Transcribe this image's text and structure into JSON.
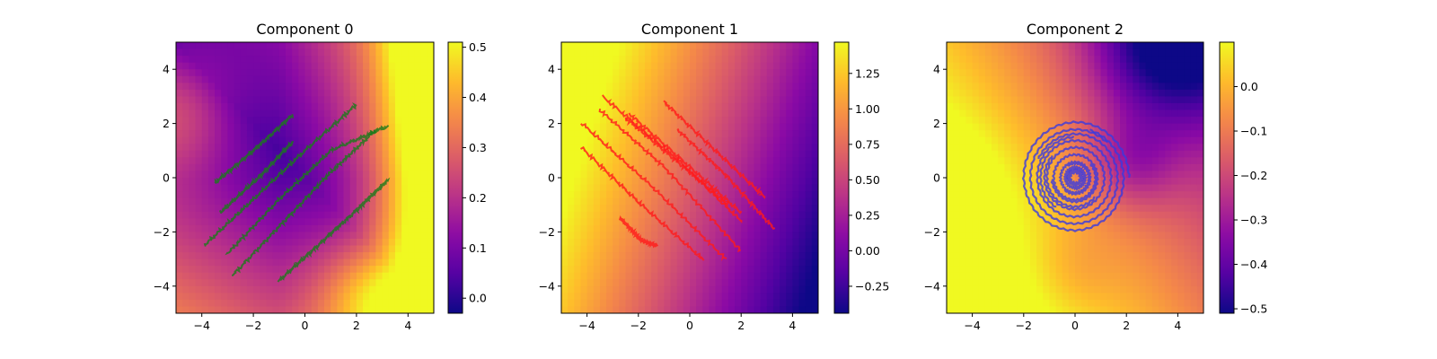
{
  "chart_data": [
    {
      "type": "heatmap",
      "title": "Component 0",
      "xlim": [
        -5,
        5
      ],
      "ylim": [
        -5,
        5
      ],
      "xticks": [
        -4,
        -2,
        0,
        2,
        4
      ],
      "yticks": [
        -4,
        -2,
        0,
        2,
        4
      ],
      "xticklabels": [
        "−4",
        "−2",
        "0",
        "2",
        "4"
      ],
      "yticklabels": [
        "−4",
        "−2",
        "0",
        "2",
        "4"
      ],
      "colormap": "plasma",
      "colorbar": {
        "range": [
          -0.03,
          0.51
        ],
        "ticks": [
          0.0,
          0.1,
          0.2,
          0.3,
          0.4,
          0.5
        ],
        "ticklabels": [
          "0.0",
          "0.1",
          "0.2",
          "0.3",
          "0.4",
          "0.5"
        ]
      },
      "field": "diagonal_band_low_along_x_eq_minus_y_high_right",
      "overlay": {
        "color": "#1a7a1a",
        "kind": "trajectories",
        "lines": [
          [
            [
              -3.5,
              -0.2
            ],
            [
              -2.0,
              1.0
            ],
            [
              -0.5,
              2.3
            ]
          ],
          [
            [
              -3.3,
              -1.3
            ],
            [
              -1.8,
              0.0
            ],
            [
              -0.5,
              1.3
            ]
          ],
          [
            [
              -3.9,
              -2.5
            ],
            [
              -2.0,
              -0.8
            ],
            [
              0.0,
              1.0
            ],
            [
              2.0,
              2.7
            ]
          ],
          [
            [
              -3.0,
              -2.8
            ],
            [
              -1.0,
              -0.8
            ],
            [
              1.0,
              1.0
            ],
            [
              3.2,
              1.9
            ]
          ],
          [
            [
              -2.8,
              -3.6
            ],
            [
              -0.8,
              -1.6
            ],
            [
              1.0,
              0.2
            ],
            [
              2.8,
              1.8
            ]
          ],
          [
            [
              -1.0,
              -3.8
            ],
            [
              0.5,
              -2.5
            ],
            [
              2.0,
              -1.2
            ],
            [
              3.2,
              -0.1
            ]
          ]
        ]
      }
    },
    {
      "type": "heatmap",
      "title": "Component 1",
      "xlim": [
        -5,
        5
      ],
      "ylim": [
        -5,
        5
      ],
      "xticks": [
        -4,
        -2,
        0,
        2,
        4
      ],
      "yticks": [
        -4,
        -2,
        0,
        2,
        4
      ],
      "xticklabels": [
        "−4",
        "−2",
        "0",
        "2",
        "4"
      ],
      "yticklabels": [
        "−4",
        "−2",
        "0",
        "2",
        "4"
      ],
      "colormap": "plasma",
      "colorbar": {
        "range": [
          -0.44,
          1.47
        ],
        "ticks": [
          -0.25,
          0.0,
          0.25,
          0.5,
          0.75,
          1.0,
          1.25
        ],
        "ticklabels": [
          "−0.25",
          "0.00",
          "0.25",
          "0.50",
          "0.75",
          "1.00",
          "1.25"
        ]
      },
      "field": "gradient_high_top_left_low_right",
      "overlay": {
        "color": "#ff1a1a",
        "kind": "trajectories",
        "lines": [
          [
            [
              -3.4,
              3.0
            ],
            [
              -0.5,
              0.7
            ],
            [
              2.0,
              -1.6
            ]
          ],
          [
            [
              -2.4,
              2.4
            ],
            [
              0.0,
              0.4
            ],
            [
              2.0,
              -1.3
            ]
          ],
          [
            [
              -2.5,
              2.2
            ],
            [
              -0.5,
              0.6
            ],
            [
              1.5,
              -1.0
            ]
          ],
          [
            [
              -3.5,
              2.5
            ],
            [
              -1.0,
              0.4
            ],
            [
              2.0,
              -2.7
            ]
          ],
          [
            [
              -4.2,
              2.0
            ],
            [
              -1.5,
              -0.3
            ],
            [
              1.4,
              -3.0
            ]
          ],
          [
            [
              -4.2,
              1.1
            ],
            [
              -2.0,
              -0.9
            ],
            [
              0.5,
              -3.0
            ]
          ],
          [
            [
              -1.0,
              2.8
            ],
            [
              1.0,
              1.0
            ],
            [
              2.9,
              -0.7
            ]
          ],
          [
            [
              -0.5,
              1.8
            ],
            [
              1.5,
              0.0
            ],
            [
              3.3,
              -1.9
            ]
          ],
          [
            [
              -2.7,
              -1.5
            ],
            [
              -1.9,
              -2.3
            ],
            [
              -1.3,
              -2.5
            ]
          ]
        ]
      }
    },
    {
      "type": "heatmap",
      "title": "Component 2",
      "xlim": [
        -5,
        5
      ],
      "ylim": [
        -5,
        5
      ],
      "xticks": [
        -4,
        -2,
        0,
        2,
        4
      ],
      "yticks": [
        -4,
        -2,
        0,
        2,
        4
      ],
      "xticklabels": [
        "−4",
        "−2",
        "0",
        "2",
        "4"
      ],
      "yticklabels": [
        "−4",
        "−2",
        "0",
        "2",
        "4"
      ],
      "colormap": "plasma",
      "colorbar": {
        "range": [
          -0.51,
          0.1
        ],
        "ticks": [
          -0.5,
          -0.4,
          -0.3,
          -0.2,
          -0.1,
          0.0
        ],
        "ticklabels": [
          "−0.5",
          "−0.4",
          "−0.3",
          "−0.2",
          "−0.1",
          "0.0"
        ]
      },
      "field": "high_left_low_top_right",
      "overlay": {
        "color": "#3a3ae0",
        "kind": "spirals",
        "radii": [
          2.1,
          1.8,
          1.5,
          1.2,
          0.9,
          0.6,
          0.4,
          0.25
        ],
        "center": [
          0,
          0
        ]
      }
    }
  ]
}
